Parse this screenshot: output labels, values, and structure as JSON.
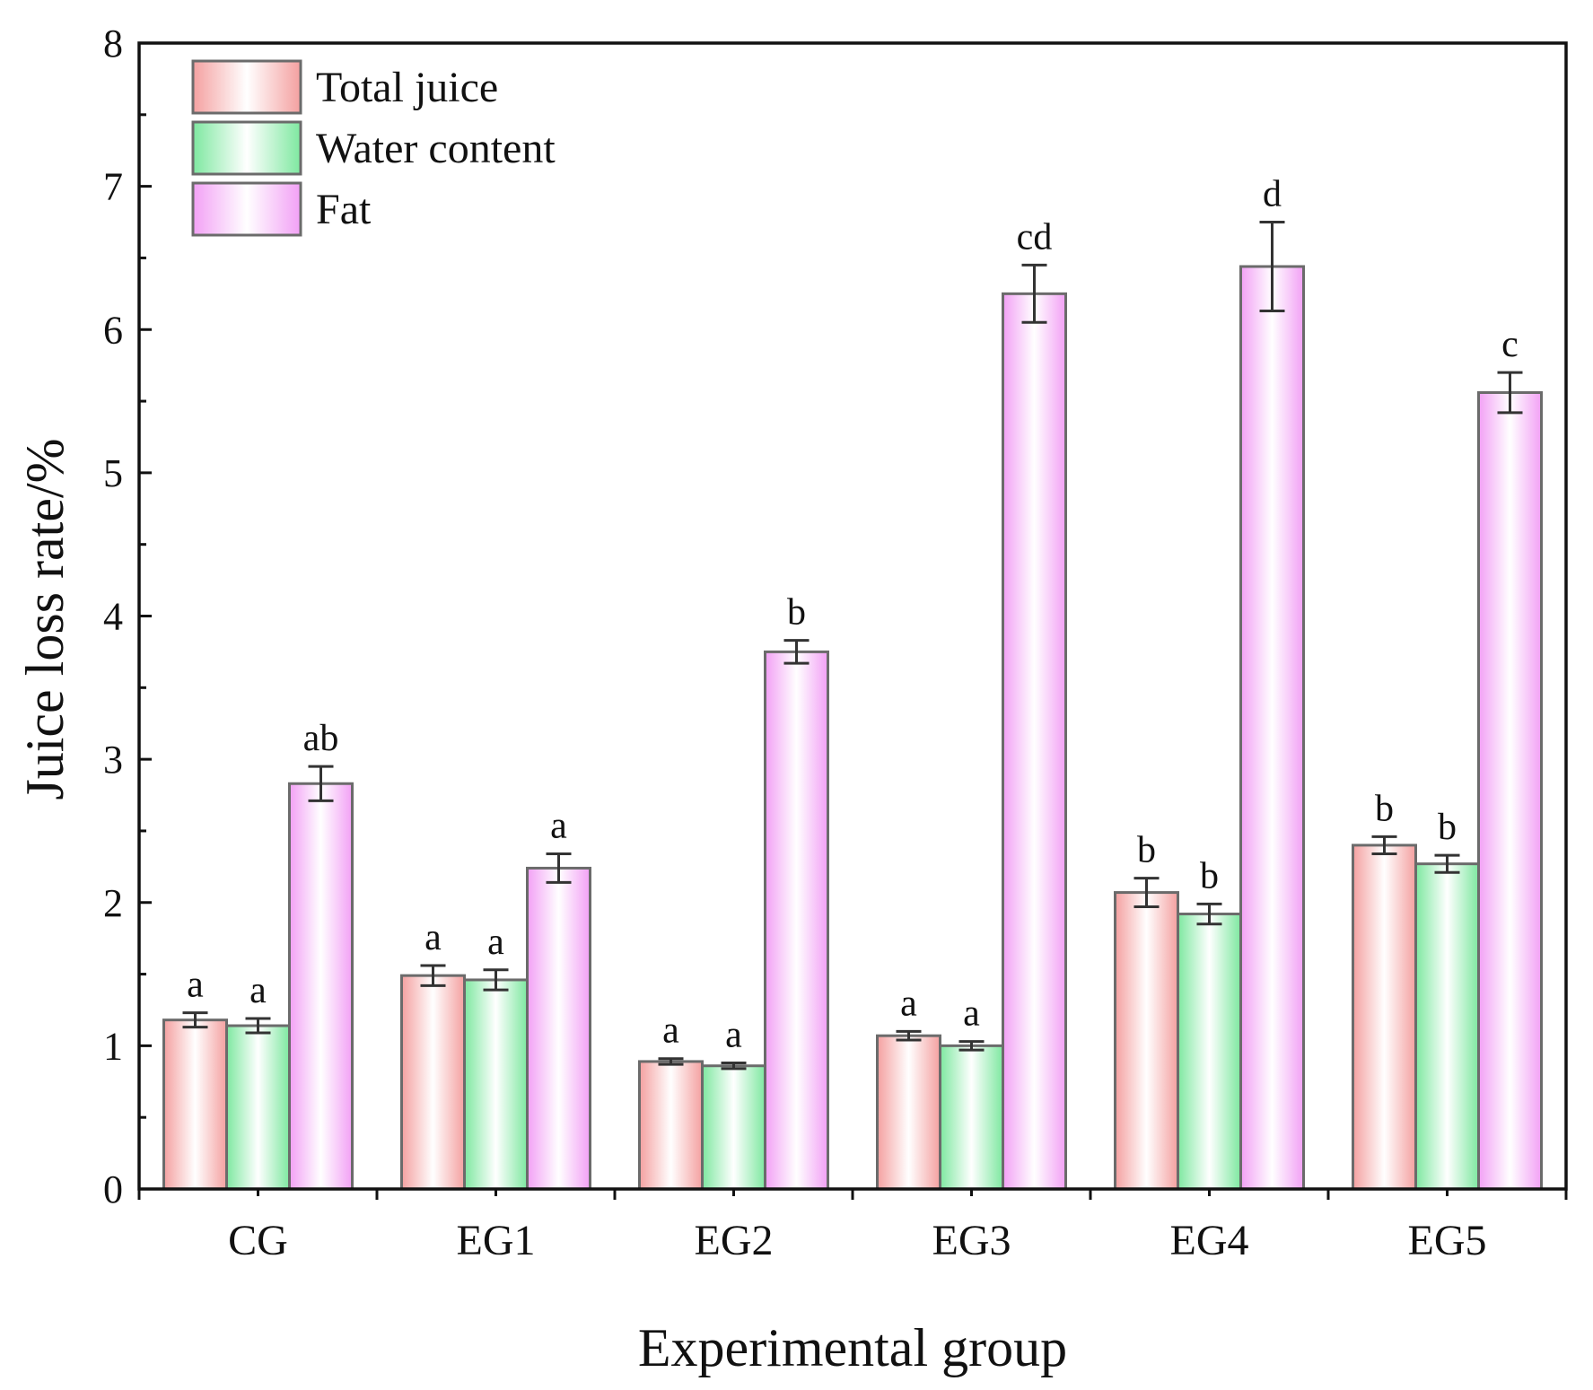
{
  "chart_data": {
    "type": "bar",
    "xlabel": "Experimental group",
    "ylabel": "Juice loss rate/%",
    "ylim": [
      0,
      8
    ],
    "yticks": [
      0,
      1,
      2,
      3,
      4,
      5,
      6,
      7,
      8
    ],
    "categories": [
      "CG",
      "EG1",
      "EG2",
      "EG3",
      "EG4",
      "EG5"
    ],
    "legend_position": "top-left",
    "series": [
      {
        "name": "Total juice",
        "color": "#f4a0a0",
        "values": [
          1.18,
          1.49,
          0.89,
          1.07,
          2.07,
          2.4
        ],
        "errors": [
          0.05,
          0.07,
          0.02,
          0.03,
          0.1,
          0.06
        ],
        "labels": [
          "a",
          "a",
          "a",
          "a",
          "b",
          "b"
        ]
      },
      {
        "name": "Water content",
        "color": "#7ee8a0",
        "values": [
          1.14,
          1.46,
          0.86,
          1.0,
          1.92,
          2.27
        ],
        "errors": [
          0.05,
          0.07,
          0.02,
          0.03,
          0.07,
          0.06
        ],
        "labels": [
          "a",
          "a",
          "a",
          "a",
          "b",
          "b"
        ]
      },
      {
        "name": "Fat",
        "color": "#f2a0f5",
        "values": [
          2.83,
          2.24,
          3.75,
          6.25,
          6.44,
          5.56
        ],
        "errors": [
          0.12,
          0.1,
          0.08,
          0.2,
          0.31,
          0.14
        ],
        "labels": [
          "ab",
          "a",
          "b",
          "cd",
          "d",
          "c"
        ]
      }
    ]
  }
}
